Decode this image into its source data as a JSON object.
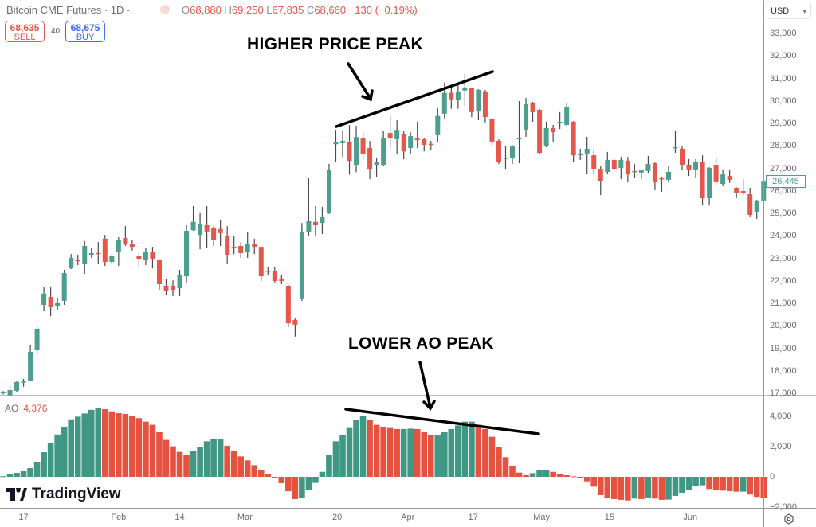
{
  "header": {
    "title": "Bitcoin CME Futures · 1D ·",
    "ohlc": {
      "o_key": "O",
      "o": "68,880",
      "h_key": "H",
      "h": "69,250",
      "l_key": "L",
      "l": "67,835",
      "c_key": "C",
      "c": "68,660",
      "change": "−130 (−0.19%)"
    },
    "sell": {
      "price": "68,635",
      "label": "SELL"
    },
    "spread": "40",
    "buy": {
      "price": "68,675",
      "label": "BUY"
    },
    "currency": "USD"
  },
  "indicator": {
    "name": "AO",
    "value": "4,376"
  },
  "annotations": {
    "top": "HIGHER PRICE PEAK",
    "bottom": "LOWER AO PEAK"
  },
  "brand": "TradingView",
  "colors": {
    "up": "#4c9f8f",
    "down": "#e4574a",
    "ao_up": "#3f9784",
    "ao_down": "#e55340",
    "wick": "#4a4a4a"
  },
  "chart_data": [
    {
      "type": "candlestick",
      "title": "",
      "last_price_label": "26,445",
      "ylim": [
        17000,
        33000
      ],
      "y_ticks": [
        "33,000",
        "32,000",
        "31,000",
        "30,000",
        "29,000",
        "28,000",
        "27,000",
        "26,000",
        "25,000",
        "24,000",
        "23,000",
        "22,000",
        "21,000",
        "20,000",
        "19,000",
        "18,000",
        "17,000"
      ],
      "y_tick_values": [
        33000,
        32000,
        31000,
        30000,
        29000,
        28000,
        27000,
        26000,
        25000,
        24000,
        23000,
        22000,
        21000,
        20000,
        19000,
        18000,
        17000
      ],
      "x_ticks": [
        {
          "label": "17",
          "bar": 3
        },
        {
          "label": "Feb",
          "bar": 17
        },
        {
          "label": "14",
          "bar": 26
        },
        {
          "label": "Mar",
          "bar": 35.6
        },
        {
          "label": "20",
          "bar": 49.2
        },
        {
          "label": "Apr",
          "bar": 59.6
        },
        {
          "label": "17",
          "bar": 69.2
        },
        {
          "label": "May",
          "bar": 79.3
        },
        {
          "label": "15",
          "bar": 89.3
        },
        {
          "label": "Jun",
          "bar": 101.2
        }
      ],
      "ohlc_fields": [
        "open",
        "high",
        "low",
        "close"
      ],
      "candles": [
        [
          17000,
          17100,
          16950,
          17050
        ],
        [
          16890,
          17390,
          16870,
          17140
        ],
        [
          17110,
          17530,
          17050,
          17500
        ],
        [
          17460,
          17640,
          17290,
          17560
        ],
        [
          17560,
          19160,
          17530,
          18840
        ],
        [
          18910,
          19970,
          18730,
          19870
        ],
        [
          20930,
          21710,
          20640,
          21430
        ],
        [
          21280,
          21750,
          20430,
          20820
        ],
        [
          20860,
          21250,
          20720,
          21000
        ],
        [
          21110,
          22490,
          20930,
          22340
        ],
        [
          22550,
          23190,
          22520,
          23020
        ],
        [
          22950,
          23160,
          22700,
          22870
        ],
        [
          22740,
          23770,
          22310,
          23550
        ],
        [
          23160,
          23480,
          23020,
          23230
        ],
        [
          23240,
          23720,
          22740,
          23210
        ],
        [
          23870,
          24040,
          22660,
          22840
        ],
        [
          22840,
          23160,
          22740,
          23090
        ],
        [
          23300,
          23940,
          22660,
          23800
        ],
        [
          23900,
          24430,
          23550,
          23620
        ],
        [
          23620,
          23800,
          23340,
          23510
        ],
        [
          23090,
          23230,
          22630,
          22980
        ],
        [
          22920,
          23450,
          22700,
          23270
        ],
        [
          23270,
          23510,
          22550,
          22980
        ],
        [
          22950,
          22950,
          21600,
          21850
        ],
        [
          21780,
          22070,
          21390,
          21570
        ],
        [
          21780,
          22020,
          21320,
          21600
        ],
        [
          21670,
          22490,
          21320,
          22240
        ],
        [
          22200,
          24470,
          21890,
          24220
        ],
        [
          24250,
          25320,
          24220,
          24620
        ],
        [
          24040,
          25040,
          23400,
          24510
        ],
        [
          24470,
          25320,
          23450,
          24190
        ],
        [
          24360,
          24430,
          23550,
          23800
        ],
        [
          24300,
          24720,
          23550,
          24120
        ],
        [
          24010,
          24430,
          22740,
          23160
        ],
        [
          23510,
          24010,
          23190,
          23480
        ],
        [
          23550,
          23720,
          23020,
          23230
        ],
        [
          23270,
          24150,
          23020,
          23660
        ],
        [
          23620,
          23870,
          23190,
          23510
        ],
        [
          23510,
          23510,
          21990,
          22200
        ],
        [
          22450,
          22630,
          22240,
          22420
        ],
        [
          22420,
          22600,
          21890,
          21990
        ],
        [
          22070,
          22280,
          21850,
          21990
        ],
        [
          21780,
          21810,
          19940,
          20110
        ],
        [
          20260,
          20320,
          19520,
          20050
        ],
        [
          21220,
          24570,
          21110,
          24190
        ],
        [
          24190,
          26590,
          24010,
          24680
        ],
        [
          24620,
          25320,
          23980,
          24470
        ],
        [
          24570,
          25280,
          24080,
          24830
        ],
        [
          25000,
          27200,
          24970,
          26910
        ],
        [
          28070,
          28710,
          27300,
          28180
        ],
        [
          28120,
          28650,
          27510,
          28220
        ],
        [
          28180,
          28920,
          26720,
          27330
        ],
        [
          27160,
          28890,
          26830,
          28390
        ],
        [
          28360,
          28600,
          27370,
          27650
        ],
        [
          27900,
          28220,
          26520,
          26980
        ],
        [
          27160,
          27440,
          26630,
          27300
        ],
        [
          27160,
          28650,
          27090,
          28360
        ],
        [
          28570,
          29390,
          27900,
          28360
        ],
        [
          28330,
          29140,
          27650,
          28710
        ],
        [
          28540,
          28680,
          27400,
          27750
        ],
        [
          27900,
          28600,
          27650,
          28430
        ],
        [
          28360,
          29070,
          27900,
          28250
        ],
        [
          28330,
          28360,
          27750,
          28040
        ],
        [
          28090,
          28220,
          27830,
          28060
        ],
        [
          28510,
          29680,
          28150,
          29330
        ],
        [
          29430,
          30810,
          29220,
          30360
        ],
        [
          30360,
          30680,
          29650,
          30070
        ],
        [
          30040,
          30740,
          29650,
          30420
        ],
        [
          30460,
          31210,
          29780,
          30600
        ],
        [
          30560,
          30590,
          29280,
          29500
        ],
        [
          29530,
          30520,
          29140,
          30490
        ],
        [
          30420,
          30490,
          29040,
          29280
        ],
        [
          29210,
          29250,
          28010,
          28190
        ],
        [
          28220,
          28290,
          27190,
          27270
        ],
        [
          27440,
          27970,
          26980,
          27470
        ],
        [
          27440,
          28040,
          27190,
          27970
        ],
        [
          28290,
          29990,
          27230,
          28360
        ],
        [
          28720,
          30130,
          28400,
          29850
        ],
        [
          29920,
          29960,
          29070,
          29500
        ],
        [
          29600,
          29640,
          27650,
          27690
        ],
        [
          28010,
          29070,
          27940,
          28790
        ],
        [
          28790,
          28930,
          28190,
          28610
        ],
        [
          29000,
          29500,
          28750,
          29070
        ],
        [
          28930,
          29920,
          28890,
          29710
        ],
        [
          29070,
          29100,
          27300,
          27580
        ],
        [
          27580,
          27870,
          27370,
          27660
        ],
        [
          27660,
          28400,
          26730,
          27870
        ],
        [
          27580,
          27800,
          26730,
          26980
        ],
        [
          26980,
          27090,
          25810,
          26450
        ],
        [
          26840,
          27730,
          26770,
          27370
        ],
        [
          27370,
          27400,
          26910,
          26980
        ],
        [
          27020,
          27510,
          26520,
          27370
        ],
        [
          27340,
          27510,
          26380,
          26730
        ],
        [
          26880,
          27190,
          26560,
          26840
        ],
        [
          26810,
          26940,
          26520,
          26910
        ],
        [
          26880,
          27550,
          26800,
          27190
        ],
        [
          27230,
          27260,
          26030,
          26380
        ],
        [
          26560,
          26630,
          25960,
          26520
        ],
        [
          26490,
          27090,
          26380,
          26840
        ],
        [
          27900,
          28650,
          27690,
          27940
        ],
        [
          27870,
          28010,
          26910,
          27160
        ],
        [
          27160,
          27410,
          26660,
          26950
        ],
        [
          26950,
          27410,
          26560,
          27300
        ],
        [
          27300,
          27580,
          25390,
          25670
        ],
        [
          25670,
          27050,
          25350,
          27020
        ],
        [
          27160,
          27480,
          26270,
          26420
        ],
        [
          26310,
          26950,
          26200,
          26730
        ],
        [
          26660,
          26910,
          26350,
          26490
        ],
        [
          26130,
          26160,
          25670,
          25920
        ],
        [
          25990,
          26520,
          25810,
          25890
        ],
        [
          25850,
          26130,
          24820,
          24930
        ],
        [
          25070,
          25600,
          24750,
          25570
        ],
        [
          25570,
          26500,
          25550,
          26445
        ]
      ]
    },
    {
      "type": "bar",
      "title": "AO",
      "ylim": [
        -2300,
        5000
      ],
      "y_ticks": [
        "4,000",
        "2,000",
        "0",
        "−2,000"
      ],
      "y_tick_values": [
        4000,
        2000,
        0,
        -2000
      ],
      "values": [
        40,
        160,
        260,
        370,
        580,
        1000,
        1630,
        2240,
        2800,
        3280,
        3800,
        3980,
        4190,
        4430,
        4540,
        4470,
        4330,
        4210,
        4160,
        4050,
        3880,
        3650,
        3440,
        2950,
        2440,
        2020,
        1650,
        1470,
        1700,
        1970,
        2350,
        2530,
        2530,
        2050,
        1730,
        1350,
        1090,
        770,
        460,
        160,
        -60,
        -420,
        -950,
        -1470,
        -1420,
        -890,
        -400,
        330,
        1470,
        2350,
        2740,
        3230,
        3740,
        4000,
        3740,
        3440,
        3300,
        3230,
        3160,
        3160,
        3190,
        3160,
        2950,
        2740,
        2740,
        2950,
        3160,
        3400,
        3650,
        3650,
        3440,
        3160,
        2650,
        1950,
        1300,
        690,
        280,
        110,
        245,
        420,
        455,
        330,
        190,
        105,
        35,
        -105,
        -300,
        -650,
        -1210,
        -1380,
        -1470,
        -1520,
        -1560,
        -1435,
        -1470,
        -1420,
        -1435,
        -1520,
        -1505,
        -1260,
        -1050,
        -860,
        -600,
        -560,
        -805,
        -860,
        -910,
        -945,
        -980,
        -980,
        -1170,
        -1330,
        -1380
      ]
    }
  ]
}
